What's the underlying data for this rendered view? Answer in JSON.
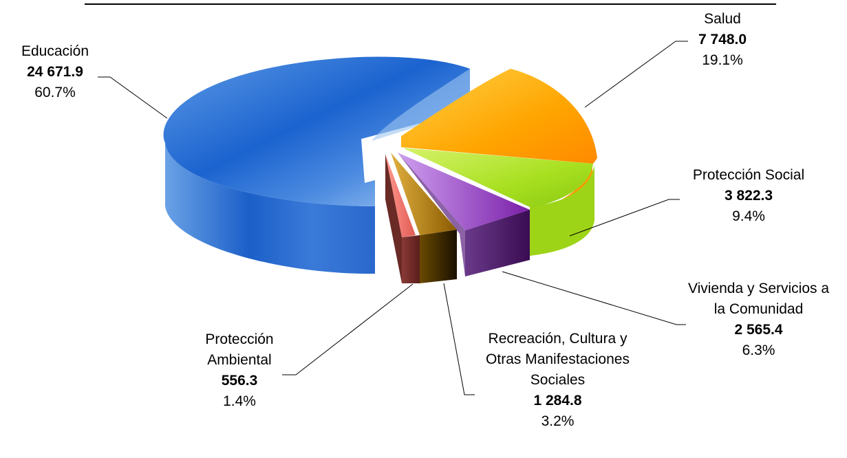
{
  "chart_data": {
    "type": "pie",
    "slices": [
      {
        "name": "Educación",
        "value": "24 671.9",
        "number": 24671.9,
        "percent": "60.7%",
        "color": "#3f7fd6"
      },
      {
        "name": "Salud",
        "value": "7 748.0",
        "number": 7748.0,
        "percent": "19.1%",
        "color": "#ffad00"
      },
      {
        "name": "Protección Social",
        "value": "3 822.3",
        "number": 3822.3,
        "percent": "9.4%",
        "color": "#b2e62e"
      },
      {
        "name": "Vivienda y Servicios a la Comunidad",
        "value": "2 565.4",
        "number": 2565.4,
        "percent": "6.3%",
        "color": "#9b4fcf"
      },
      {
        "name": "Recreación, Cultura y Otras Manifestaciones Sociales",
        "value": "1 284.8",
        "number": 1284.8,
        "percent": "3.2%",
        "color": "#b98a10"
      },
      {
        "name": "Protección Ambiental",
        "value": "556.3",
        "number": 556.3,
        "percent": "1.4%",
        "color": "#e8746e"
      }
    ]
  }
}
